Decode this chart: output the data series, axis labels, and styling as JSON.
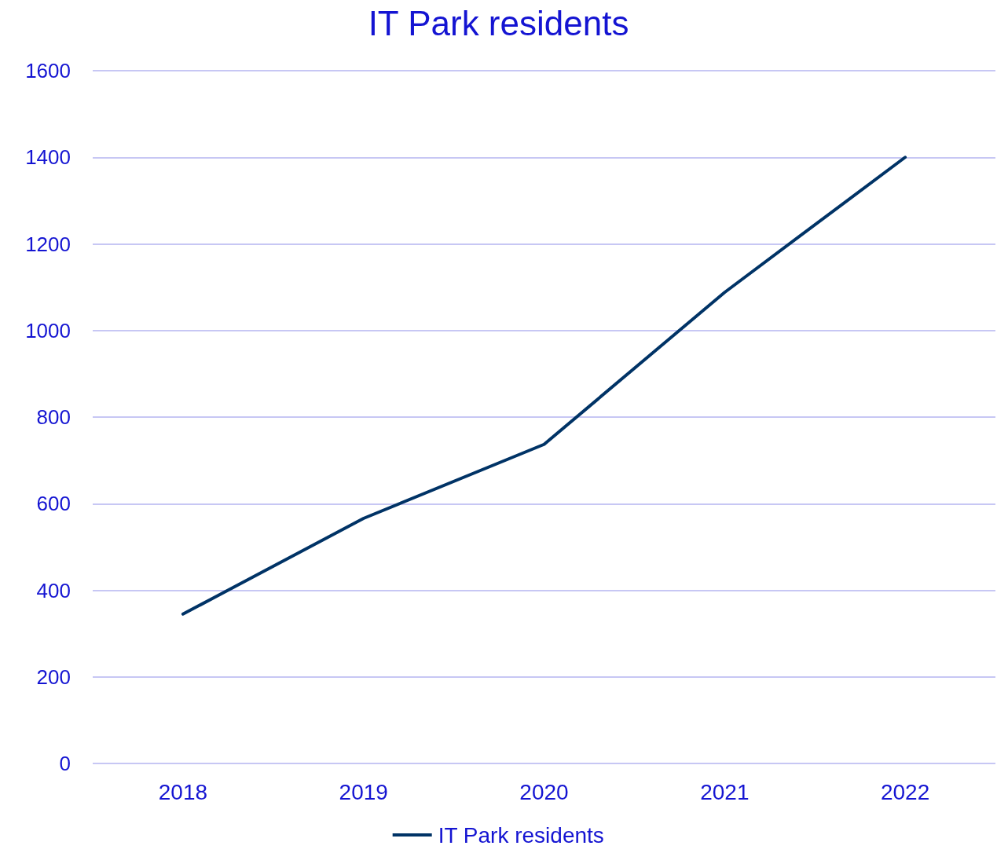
{
  "chart_data": {
    "type": "line",
    "title": "IT Park residents",
    "categories": [
      "2018",
      "2019",
      "2020",
      "2021",
      "2022"
    ],
    "series": [
      {
        "name": "IT Park residents",
        "color": "#003366",
        "values": [
          345,
          566,
          737,
          1088,
          1400
        ]
      }
    ],
    "ylim": [
      0,
      1600
    ],
    "yticks": [
      0,
      200,
      400,
      600,
      800,
      1000,
      1200,
      1400,
      1600
    ],
    "grid": "y",
    "legend": "bottom",
    "marker": "none",
    "line_style": "solid"
  }
}
